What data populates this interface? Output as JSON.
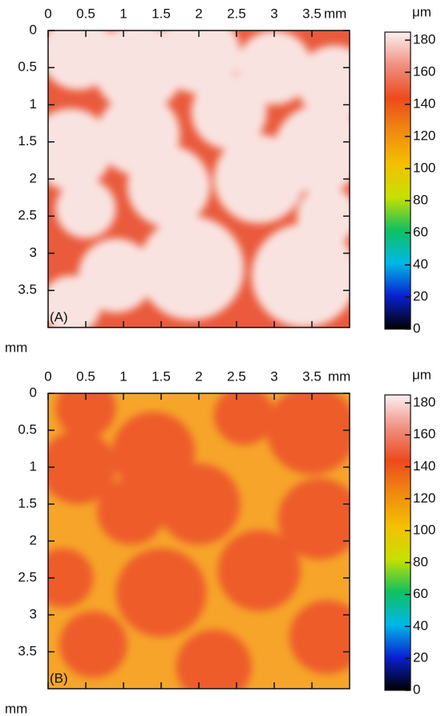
{
  "chart_data": [
    {
      "type": "heatmap",
      "panel_label": "(A)",
      "xlim": [
        0,
        4
      ],
      "xticks": [
        0,
        0.5,
        1,
        1.5,
        2,
        2.5,
        3,
        3.5
      ],
      "xlabel": "mm",
      "ylim": [
        0,
        4
      ],
      "yticks": [
        0,
        0.5,
        1,
        1.5,
        2,
        2.5,
        3,
        3.5
      ],
      "ylabel": "mm",
      "colorbar": {
        "label": "μm",
        "lim": [
          0,
          185
        ],
        "ticks": [
          0,
          20,
          40,
          60,
          80,
          100,
          120,
          140,
          160,
          180
        ],
        "colors": [
          "#000000",
          "#0a1fd0",
          "#00b8e8",
          "#10c060",
          "#c8e000",
          "#f4c000",
          "#f08a10",
          "#ec4a1c",
          "#f09080",
          "#fbf0f0"
        ]
      }
    },
    {
      "type": "heatmap",
      "panel_label": "(B)",
      "xlim": [
        0,
        4
      ],
      "xticks": [
        0,
        0.5,
        1,
        1.5,
        2,
        2.5,
        3,
        3.5
      ],
      "xlabel": "mm",
      "ylim": [
        0,
        4
      ],
      "yticks": [
        0,
        0.5,
        1,
        1.5,
        2,
        2.5,
        3,
        3.5
      ],
      "ylabel": "mm",
      "colorbar": {
        "label": "μm",
        "lim": [
          0,
          185
        ],
        "ticks": [
          0,
          20,
          40,
          60,
          80,
          100,
          120,
          140,
          160,
          180
        ],
        "colors": [
          "#000000",
          "#0a1fd0",
          "#00b8e8",
          "#10c060",
          "#c8e000",
          "#f4c000",
          "#f08a10",
          "#ec4a1c",
          "#f09080",
          "#fbf0f0"
        ]
      }
    }
  ]
}
